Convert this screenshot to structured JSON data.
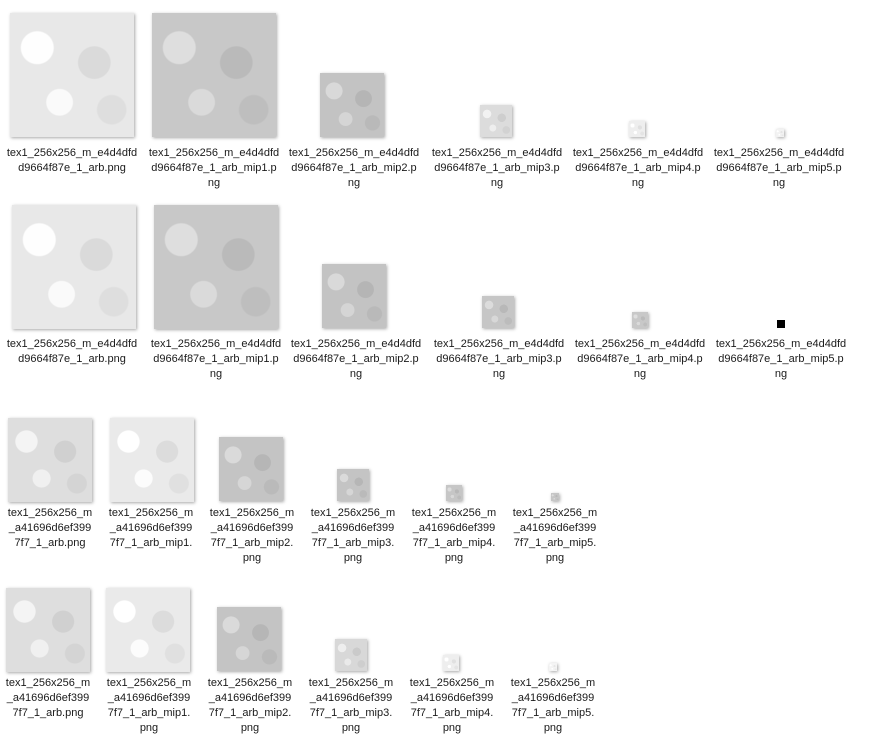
{
  "groups": [
    {
      "items": [
        {
          "lines": [
            "tex1_256x256_m_e4d4dfd",
            "d9664f87e_1_arb.png"
          ],
          "tone": "#e8e8e8"
        },
        {
          "lines": [
            "tex1_256x256_m_e4d4dfd",
            "d9664f87e_1_arb_mip1.p",
            "ng"
          ],
          "tone": "#c8c8c8"
        },
        {
          "lines": [
            "tex1_256x256_m_e4d4dfd",
            "d9664f87e_1_arb_mip2.p",
            "ng"
          ],
          "tone": "#c3c3c3"
        },
        {
          "lines": [
            "tex1_256x256_m_e4d4dfd",
            "d9664f87e_1_arb_mip3.p",
            "ng"
          ],
          "tone": "#dcdcdc"
        },
        {
          "lines": [
            "tex1_256x256_m_e4d4dfd",
            "d9664f87e_1_arb_mip4.p",
            "ng"
          ],
          "tone": "#eeeeee"
        },
        {
          "lines": [
            "tex1_256x256_m_e4d4dfd",
            "d9664f87e_1_arb_mip5.p",
            "ng"
          ],
          "tone": "#f2f2f2"
        }
      ]
    },
    {
      "items": [
        {
          "lines": [
            "tex1_256x256_m_e4d4dfd",
            "d9664f87e_1_arb.png"
          ],
          "tone": "#e8e8e8"
        },
        {
          "lines": [
            "tex1_256x256_m_e4d4dfd",
            "d9664f87e_1_arb_mip1.p",
            "ng"
          ],
          "tone": "#c8c8c8"
        },
        {
          "lines": [
            "tex1_256x256_m_e4d4dfd",
            "d9664f87e_1_arb_mip2.p",
            "ng"
          ],
          "tone": "#c3c3c3"
        },
        {
          "lines": [
            "tex1_256x256_m_e4d4dfd",
            "d9664f87e_1_arb_mip3.p",
            "ng"
          ],
          "tone": "#c6c6c6"
        },
        {
          "lines": [
            "tex1_256x256_m_e4d4dfd",
            "d9664f87e_1_arb_mip4.p",
            "ng"
          ],
          "tone": "#c8c8c8"
        },
        {
          "lines": [
            "tex1_256x256_m_e4d4dfd",
            "d9664f87e_1_arb_mip5.p",
            "ng"
          ],
          "tone": "#000000"
        }
      ]
    },
    {
      "items": [
        {
          "lines": [
            "tex1_256x256_m",
            "_a41696d6ef399",
            "7f7_1_arb.png"
          ],
          "tone": "#dedede"
        },
        {
          "lines": [
            "tex1_256x256_m",
            "_a41696d6ef399",
            "7f7_1_arb_mip1."
          ],
          "tone": "#eaeaea"
        },
        {
          "lines": [
            "tex1_256x256_m",
            "_a41696d6ef399",
            "7f7_1_arb_mip2.",
            "png"
          ],
          "tone": "#c4c4c4"
        },
        {
          "lines": [
            "tex1_256x256_m",
            "_a41696d6ef399",
            "7f7_1_arb_mip3.",
            "png"
          ],
          "tone": "#c4c4c4"
        },
        {
          "lines": [
            "tex1_256x256_m",
            "_a41696d6ef399",
            "7f7_1_arb_mip4.",
            "png"
          ],
          "tone": "#c6c6c6"
        },
        {
          "lines": [
            "tex1_256x256_m",
            "_a41696d6ef399",
            "7f7_1_arb_mip5.",
            "png"
          ],
          "tone": "#c6c6c6"
        }
      ]
    },
    {
      "items": [
        {
          "lines": [
            "tex1_256x256_m",
            "_a41696d6ef399",
            "7f7_1_arb.png"
          ],
          "tone": "#dedede"
        },
        {
          "lines": [
            "tex1_256x256_m",
            "_a41696d6ef399",
            "7f7_1_arb_mip1.",
            "png"
          ],
          "tone": "#eaeaea"
        },
        {
          "lines": [
            "tex1_256x256_m",
            "_a41696d6ef399",
            "7f7_1_arb_mip2.",
            "png"
          ],
          "tone": "#c4c4c4"
        },
        {
          "lines": [
            "tex1_256x256_m",
            "_a41696d6ef399",
            "7f7_1_arb_mip3.",
            "png"
          ],
          "tone": "#d8d8d8"
        },
        {
          "lines": [
            "tex1_256x256_m",
            "_a41696d6ef399",
            "7f7_1_arb_mip4.",
            "png"
          ],
          "tone": "#eeeeee"
        },
        {
          "lines": [
            "tex1_256x256_m",
            "_a41696d6ef399",
            "7f7_1_arb_mip5.",
            "png"
          ],
          "tone": "#f4f4f4"
        }
      ]
    }
  ]
}
